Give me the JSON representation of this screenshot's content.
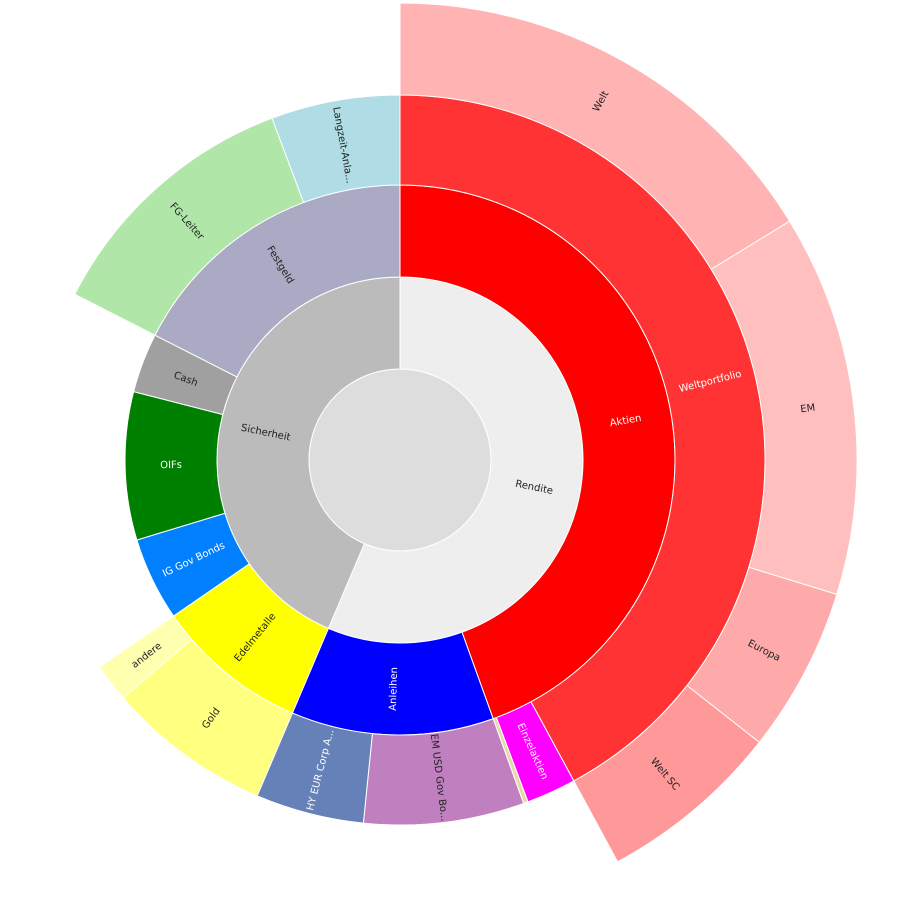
{
  "chart_data": {
    "type": "sunburst",
    "value": 100,
    "color": "#dddddd",
    "children": [
      {
        "name": "Rendite",
        "value": 56.4,
        "color": "#eeeeee",
        "children": [
          {
            "name": "Aktien",
            "value": 44.5,
            "color": "#ff0000",
            "children": [
              {
                "name": "Weltportfolio",
                "value": 42.1,
                "color": "#ff3333",
                "children": [
                  {
                    "name": "Welt",
                    "value": 16.25,
                    "color": "#ffb3b3"
                  },
                  {
                    "name": "EM",
                    "value": 13.5,
                    "color": "#ffbfbf"
                  },
                  {
                    "name": "Europa",
                    "value": 5.85,
                    "color": "#ffaaaa"
                  },
                  {
                    "name": "Welt SC",
                    "value": 6.5,
                    "color": "#ff9999"
                  }
                ]
              },
              {
                "name": "Einzelaktien",
                "value": 2.2,
                "color": "#ff00ff"
              },
              {
                "name": null,
                "value": 0.2,
                "color": "#e6d8a8"
              }
            ]
          },
          {
            "name": "Anleihen",
            "value": 11.9,
            "color": "#0000ff",
            "children": [
              {
                "name": "EM USD Gov Bo...",
                "value": 7.1,
                "color": "#c080c0"
              },
              {
                "name": "HY EUR Corp A...",
                "value": 4.8,
                "color": "#6680b8"
              }
            ]
          }
        ]
      },
      {
        "name": "Sicherheit",
        "value": 43.6,
        "color": "#bbbbbb",
        "children": [
          {
            "name": "Edelmetalle",
            "value": 9.0,
            "color": "#ffff00",
            "children": [
              {
                "name": "Gold",
                "value": 7.3,
                "color": "#ffff80"
              },
              {
                "name": "andere",
                "value": 1.7,
                "color": "#ffffb0"
              }
            ]
          },
          {
            "name": "IG Gov Bonds",
            "value": 4.9,
            "color": "#0080ff"
          },
          {
            "name": "OIFs",
            "value": 8.7,
            "color": "#008000"
          },
          {
            "name": "Cash",
            "value": 3.5,
            "color": "#a0a0a0"
          },
          {
            "name": "Festgeld",
            "value": 17.5,
            "color": "#aaaac4",
            "children": [
              {
                "name": "FG-Leiter",
                "value": 11.8,
                "color": "#b0e6a8"
              },
              {
                "name": "Langzeit-Anla...",
                "value": 5.7,
                "color": "#b0dde5"
              }
            ]
          }
        ]
      }
    ]
  }
}
